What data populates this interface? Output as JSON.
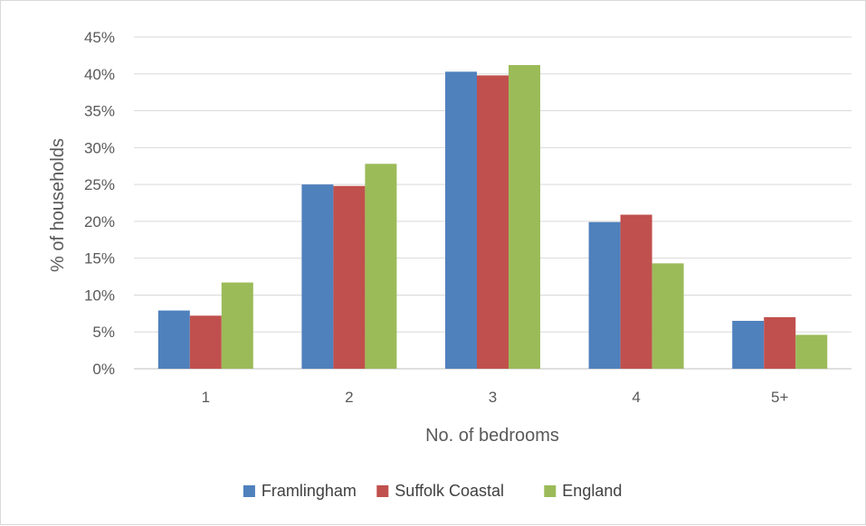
{
  "chart_data": {
    "type": "bar",
    "categories": [
      "1",
      "2",
      "3",
      "4",
      "5+"
    ],
    "series": [
      {
        "name": "Framlingham",
        "color": "#4f81bd",
        "values": [
          7.9,
          25.0,
          40.3,
          19.9,
          6.5
        ]
      },
      {
        "name": "Suffolk Coastal",
        "color": "#c0504d",
        "values": [
          7.2,
          24.8,
          39.8,
          20.9,
          7.0
        ]
      },
      {
        "name": "England",
        "color": "#9bbb59",
        "values": [
          11.7,
          27.8,
          41.2,
          14.3,
          4.6
        ]
      }
    ],
    "xlabel": "No. of bedrooms",
    "ylabel": "% of households",
    "ylim": [
      0,
      45
    ],
    "yticks": [
      "0%",
      "5%",
      "10%",
      "15%",
      "20%",
      "25%",
      "30%",
      "35%",
      "40%",
      "45%"
    ],
    "ytick_values": [
      0,
      5,
      10,
      15,
      20,
      25,
      30,
      35,
      40,
      45
    ],
    "grid": true,
    "legend_position": "bottom"
  }
}
